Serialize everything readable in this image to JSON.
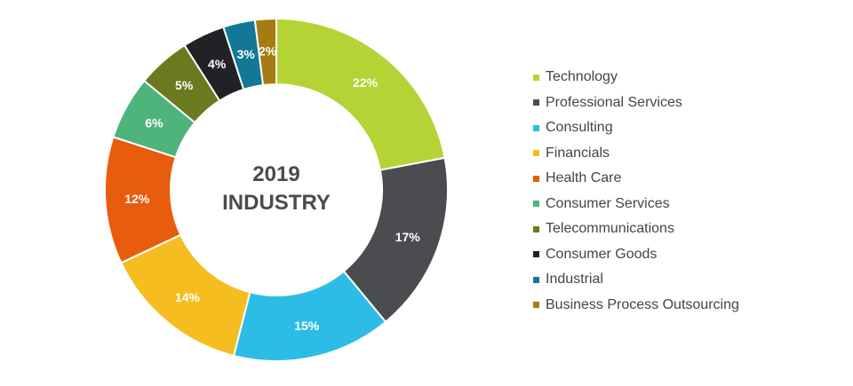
{
  "center": {
    "line1": "2019",
    "line2": "INDUSTRY"
  },
  "chart_data": {
    "type": "pie",
    "style": "donut",
    "start_angle_deg": 0,
    "direction": "clockwise",
    "legend_position": "right",
    "slices": [
      {
        "label": "Technology",
        "value": 22,
        "display": "22%",
        "color": "#b5d334"
      },
      {
        "label": "Professional Services",
        "value": 17,
        "display": "17%",
        "color": "#4b4c50"
      },
      {
        "label": "Consulting",
        "value": 15,
        "display": "15%",
        "color": "#2dbce6"
      },
      {
        "label": "Financials",
        "value": 14,
        "display": "14%",
        "color": "#f6bd20"
      },
      {
        "label": "Health Care",
        "value": 12,
        "display": "12%",
        "color": "#e85c0d"
      },
      {
        "label": "Consumer Services",
        "value": 6,
        "display": "6%",
        "color": "#4eb47c"
      },
      {
        "label": "Telecommunications",
        "value": 5,
        "display": "5%",
        "color": "#6b7a1e"
      },
      {
        "label": "Consumer Goods",
        "value": 4,
        "display": "4%",
        "color": "#222226"
      },
      {
        "label": "Industrial",
        "value": 3,
        "display": "3%",
        "color": "#137896"
      },
      {
        "label": "Business Process Outsourcing",
        "value": 2,
        "display": "2%",
        "color": "#a67b12"
      }
    ]
  }
}
